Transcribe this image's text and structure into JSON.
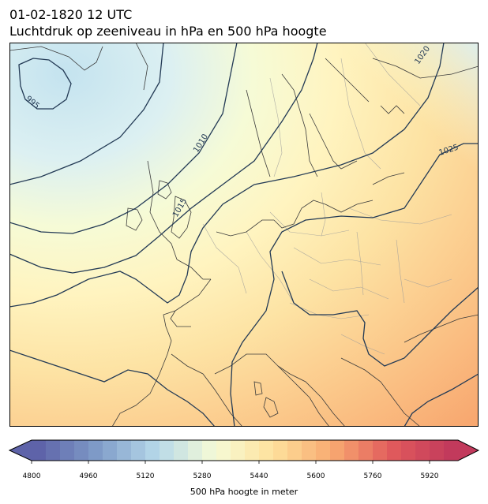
{
  "header": {
    "datetime": "01-02-1820 12 UTC",
    "title": "Luchtdruk op zeeniveau in hPa en 500 hPa hoogte"
  },
  "map": {
    "region": "Europe and North Atlantic",
    "isobar_labels": [
      {
        "value": "995"
      },
      {
        "value": "1010"
      },
      {
        "value": "1015"
      },
      {
        "value": "1020"
      },
      {
        "value": "1025"
      }
    ],
    "colors": {
      "isobar": "#233a55",
      "coastline": "#3b3b3b",
      "border": "#9a9a9a",
      "frame": "#000000"
    }
  },
  "colorbar": {
    "label": "500 hPa hoogte in meter",
    "min": 4800,
    "max": 6000,
    "step": 40,
    "extend": "both",
    "ticks": [
      "4800",
      "4960",
      "5120",
      "5280",
      "5440",
      "5600",
      "5760",
      "5920"
    ],
    "colormap": [
      "#5e63a9",
      "#7f9cc8",
      "#b6d8e9",
      "#f6fbd6",
      "#fee09b",
      "#f8a870",
      "#e05a5c",
      "#c23a5c"
    ]
  }
}
